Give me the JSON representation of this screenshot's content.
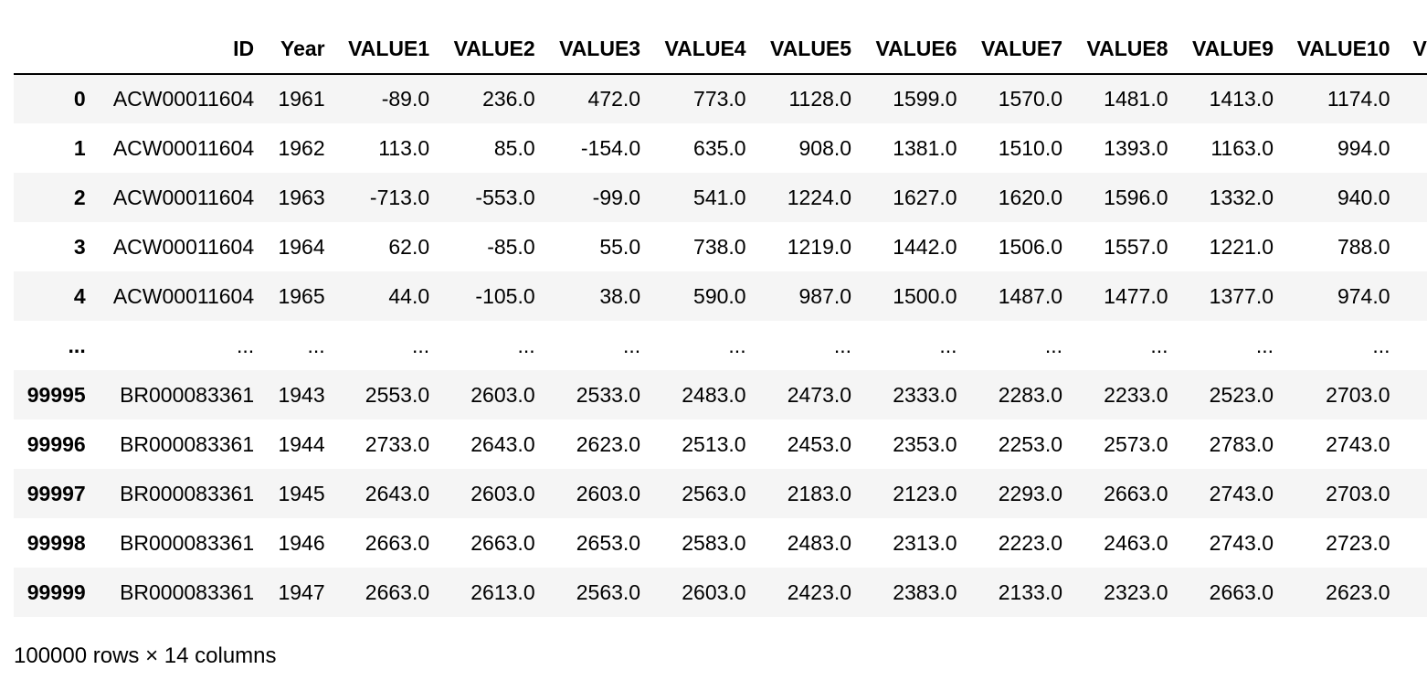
{
  "table": {
    "columns": [
      "",
      "ID",
      "Year",
      "VALUE1",
      "VALUE2",
      "VALUE3",
      "VALUE4",
      "VALUE5",
      "VALUE6",
      "VALUE7",
      "VALUE8",
      "VALUE9",
      "VALUE10",
      "V"
    ],
    "rows": [
      {
        "index": "0",
        "cells": [
          "ACW00011604",
          "1961",
          "-89.0",
          "236.0",
          "472.0",
          "773.0",
          "1128.0",
          "1599.0",
          "1570.0",
          "1481.0",
          "1413.0",
          "1174.0",
          ""
        ]
      },
      {
        "index": "1",
        "cells": [
          "ACW00011604",
          "1962",
          "113.0",
          "85.0",
          "-154.0",
          "635.0",
          "908.0",
          "1381.0",
          "1510.0",
          "1393.0",
          "1163.0",
          "994.0",
          ""
        ]
      },
      {
        "index": "2",
        "cells": [
          "ACW00011604",
          "1963",
          "-713.0",
          "-553.0",
          "-99.0",
          "541.0",
          "1224.0",
          "1627.0",
          "1620.0",
          "1596.0",
          "1332.0",
          "940.0",
          ""
        ]
      },
      {
        "index": "3",
        "cells": [
          "ACW00011604",
          "1964",
          "62.0",
          "-85.0",
          "55.0",
          "738.0",
          "1219.0",
          "1442.0",
          "1506.0",
          "1557.0",
          "1221.0",
          "788.0",
          ""
        ]
      },
      {
        "index": "4",
        "cells": [
          "ACW00011604",
          "1965",
          "44.0",
          "-105.0",
          "38.0",
          "590.0",
          "987.0",
          "1500.0",
          "1487.0",
          "1477.0",
          "1377.0",
          "974.0",
          ""
        ]
      },
      {
        "index": "...",
        "cells": [
          "...",
          "...",
          "...",
          "...",
          "...",
          "...",
          "...",
          "...",
          "...",
          "...",
          "...",
          "...",
          ""
        ]
      },
      {
        "index": "99995",
        "cells": [
          "BR000083361",
          "1943",
          "2553.0",
          "2603.0",
          "2533.0",
          "2483.0",
          "2473.0",
          "2333.0",
          "2283.0",
          "2233.0",
          "2523.0",
          "2703.0",
          ""
        ]
      },
      {
        "index": "99996",
        "cells": [
          "BR000083361",
          "1944",
          "2733.0",
          "2643.0",
          "2623.0",
          "2513.0",
          "2453.0",
          "2353.0",
          "2253.0",
          "2573.0",
          "2783.0",
          "2743.0",
          ""
        ]
      },
      {
        "index": "99997",
        "cells": [
          "BR000083361",
          "1945",
          "2643.0",
          "2603.0",
          "2603.0",
          "2563.0",
          "2183.0",
          "2123.0",
          "2293.0",
          "2663.0",
          "2743.0",
          "2703.0",
          ""
        ]
      },
      {
        "index": "99998",
        "cells": [
          "BR000083361",
          "1946",
          "2663.0",
          "2663.0",
          "2653.0",
          "2583.0",
          "2483.0",
          "2313.0",
          "2223.0",
          "2463.0",
          "2743.0",
          "2723.0",
          ""
        ]
      },
      {
        "index": "99999",
        "cells": [
          "BR000083361",
          "1947",
          "2663.0",
          "2613.0",
          "2563.0",
          "2603.0",
          "2423.0",
          "2383.0",
          "2133.0",
          "2323.0",
          "2663.0",
          "2623.0",
          ""
        ]
      }
    ]
  },
  "footer": {
    "shape_text": "100000 rows × 14 columns"
  },
  "colors": {
    "stripe": "#f5f5f5",
    "header_rule": "#000000",
    "text": "#000000"
  }
}
